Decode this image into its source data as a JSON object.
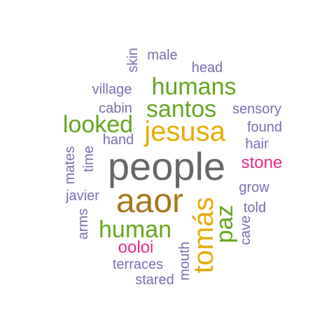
{
  "words": {
    "people": "people",
    "aaor": "aaor",
    "jesusa": "jesusa",
    "tomas": "tomás",
    "humans": "humans",
    "santos": "santos",
    "looked": "looked",
    "human": "human",
    "paz": "paz",
    "stone": "stone",
    "ooloi": "ooloi",
    "skin": "skin",
    "male": "male",
    "head": "head",
    "village": "village",
    "cabin": "cabin",
    "sensory": "sensory",
    "found": "found",
    "hand": "hand",
    "hair": "hair",
    "time": "time",
    "mates": "mates",
    "javier": "javier",
    "grow": "grow",
    "told": "told",
    "arms": "arms",
    "cave": "cave",
    "mouth": "mouth",
    "terraces": "terraces",
    "stared": "stared"
  },
  "colors": {
    "purple": "#7570b3",
    "green": "#66a61e",
    "gold": "#e6ab02",
    "pink": "#e7298a",
    "gray": "#666666",
    "brown": "#a6761d"
  }
}
